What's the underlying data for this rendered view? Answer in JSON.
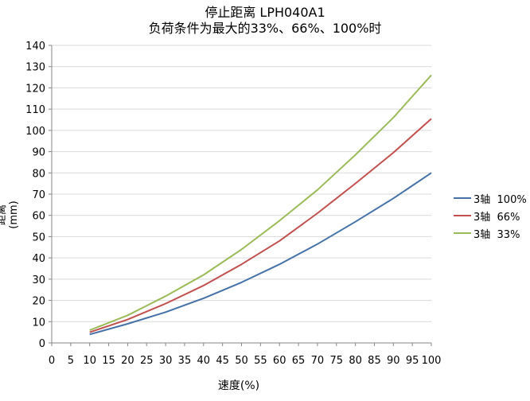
{
  "chart_data": {
    "type": "line",
    "title": "停止距离 LPH040A1",
    "subtitle": "负荷条件为最大的33%、66%、100%时",
    "xlabel": "速度(%)",
    "ylabel": "距离 (mm)",
    "x_ticks": [
      0,
      5,
      10,
      15,
      20,
      25,
      30,
      35,
      40,
      45,
      50,
      55,
      60,
      65,
      70,
      75,
      80,
      85,
      90,
      95,
      100
    ],
    "xlim": [
      0,
      100
    ],
    "ylim": [
      0,
      140
    ],
    "y_step": 10,
    "grid": "horizontal",
    "legend_position": "right",
    "x": [
      10,
      20,
      30,
      40,
      50,
      60,
      70,
      80,
      90,
      100
    ],
    "series": [
      {
        "name": "3轴  100%",
        "color": "#4472a8",
        "values": [
          4,
          9,
          14.5,
          21,
          28.5,
          37,
          46.5,
          57,
          68,
          80
        ]
      },
      {
        "name": "3轴  66%",
        "color": "#c0504d",
        "values": [
          5,
          11,
          18.5,
          27,
          37,
          48,
          61,
          75,
          89.5,
          105.5
        ]
      },
      {
        "name": "3轴  33%",
        "color": "#9bbb59",
        "values": [
          6,
          13,
          22,
          32,
          44,
          57.5,
          72,
          88.5,
          106,
          126
        ]
      }
    ]
  }
}
